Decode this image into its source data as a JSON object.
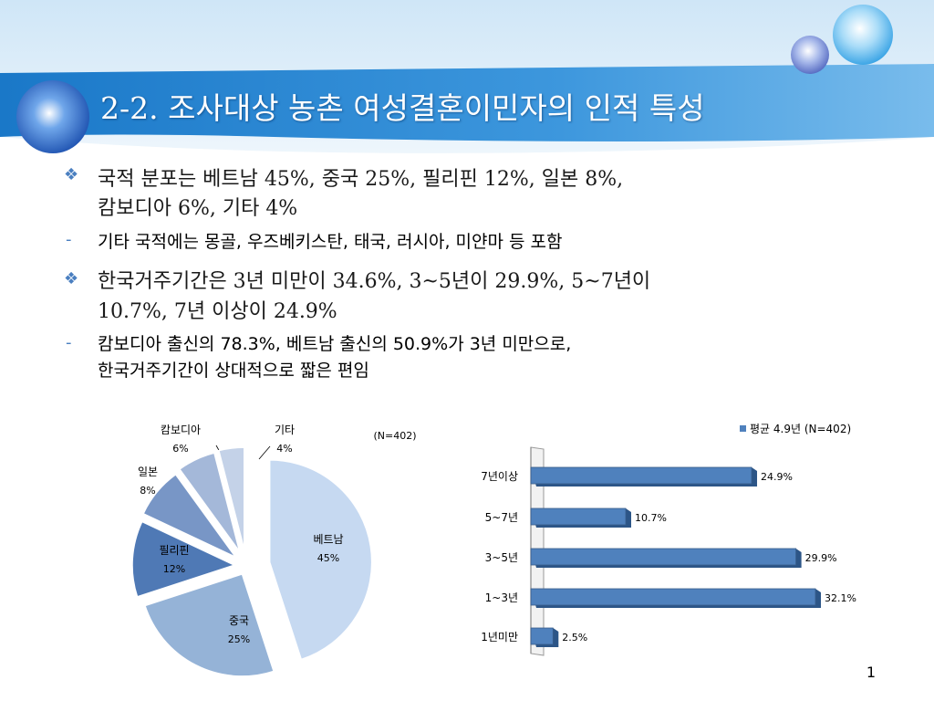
{
  "slide": {
    "title": "2-2. 조사대상 농촌 여성결혼이민자의 인적 특성",
    "bullets": [
      {
        "lines": [
          "국적 분포는 베트남 45%, 중국 25%, 필리핀 12%, 일본 8%,",
          "캄보디아 6%, 기타 4%"
        ],
        "sub": [
          "기타 국적에는 몽골, 우즈베키스탄, 태국, 러시아, 미얀마 등 포함"
        ]
      },
      {
        "lines": [
          "한국거주기간은 3년 미만이 34.6%, 3~5년이 29.9%, 5~7년이",
          "10.7%, 7년 이상이 24.9%"
        ],
        "sub": [
          "캄보디아 출신의 78.3%, 베트남 출신의 50.9%가 3년 미만으로,",
          "한국거주기간이 상대적으로 짧은 편임"
        ]
      }
    ],
    "page_number": "1"
  },
  "chart_data": [
    {
      "type": "pie",
      "note": "(N=402)",
      "slices": [
        {
          "label": "베트남",
          "value": 45,
          "value_label": "45%",
          "color": "#c6d9f1"
        },
        {
          "label": "중국",
          "value": 25,
          "value_label": "25%",
          "color": "#95b3d7"
        },
        {
          "label": "필리핀",
          "value": 12,
          "value_label": "12%",
          "color": "#4f79b5"
        },
        {
          "label": "일본",
          "value": 8,
          "value_label": "8%",
          "color": "#7896c6"
        },
        {
          "label": "캄보디아",
          "value": 6,
          "value_label": "6%",
          "color": "#a4b8d9"
        },
        {
          "label": "기타",
          "value": 4,
          "value_label": "4%",
          "color": "#c4d2e8"
        }
      ]
    },
    {
      "type": "bar",
      "orientation": "horizontal",
      "categories": [
        "7년이상",
        "5~7년",
        "3~5년",
        "1~3년",
        "1년미만"
      ],
      "series": [
        {
          "name": "평균 4.9년 (N=402)",
          "values": [
            24.9,
            10.7,
            29.9,
            32.1,
            2.5
          ],
          "color": "#4f81bd"
        }
      ],
      "value_labels": [
        "24.9%",
        "10.7%",
        "29.9%",
        "32.1%",
        "2.5%"
      ],
      "xlim": [
        0,
        35
      ]
    }
  ]
}
